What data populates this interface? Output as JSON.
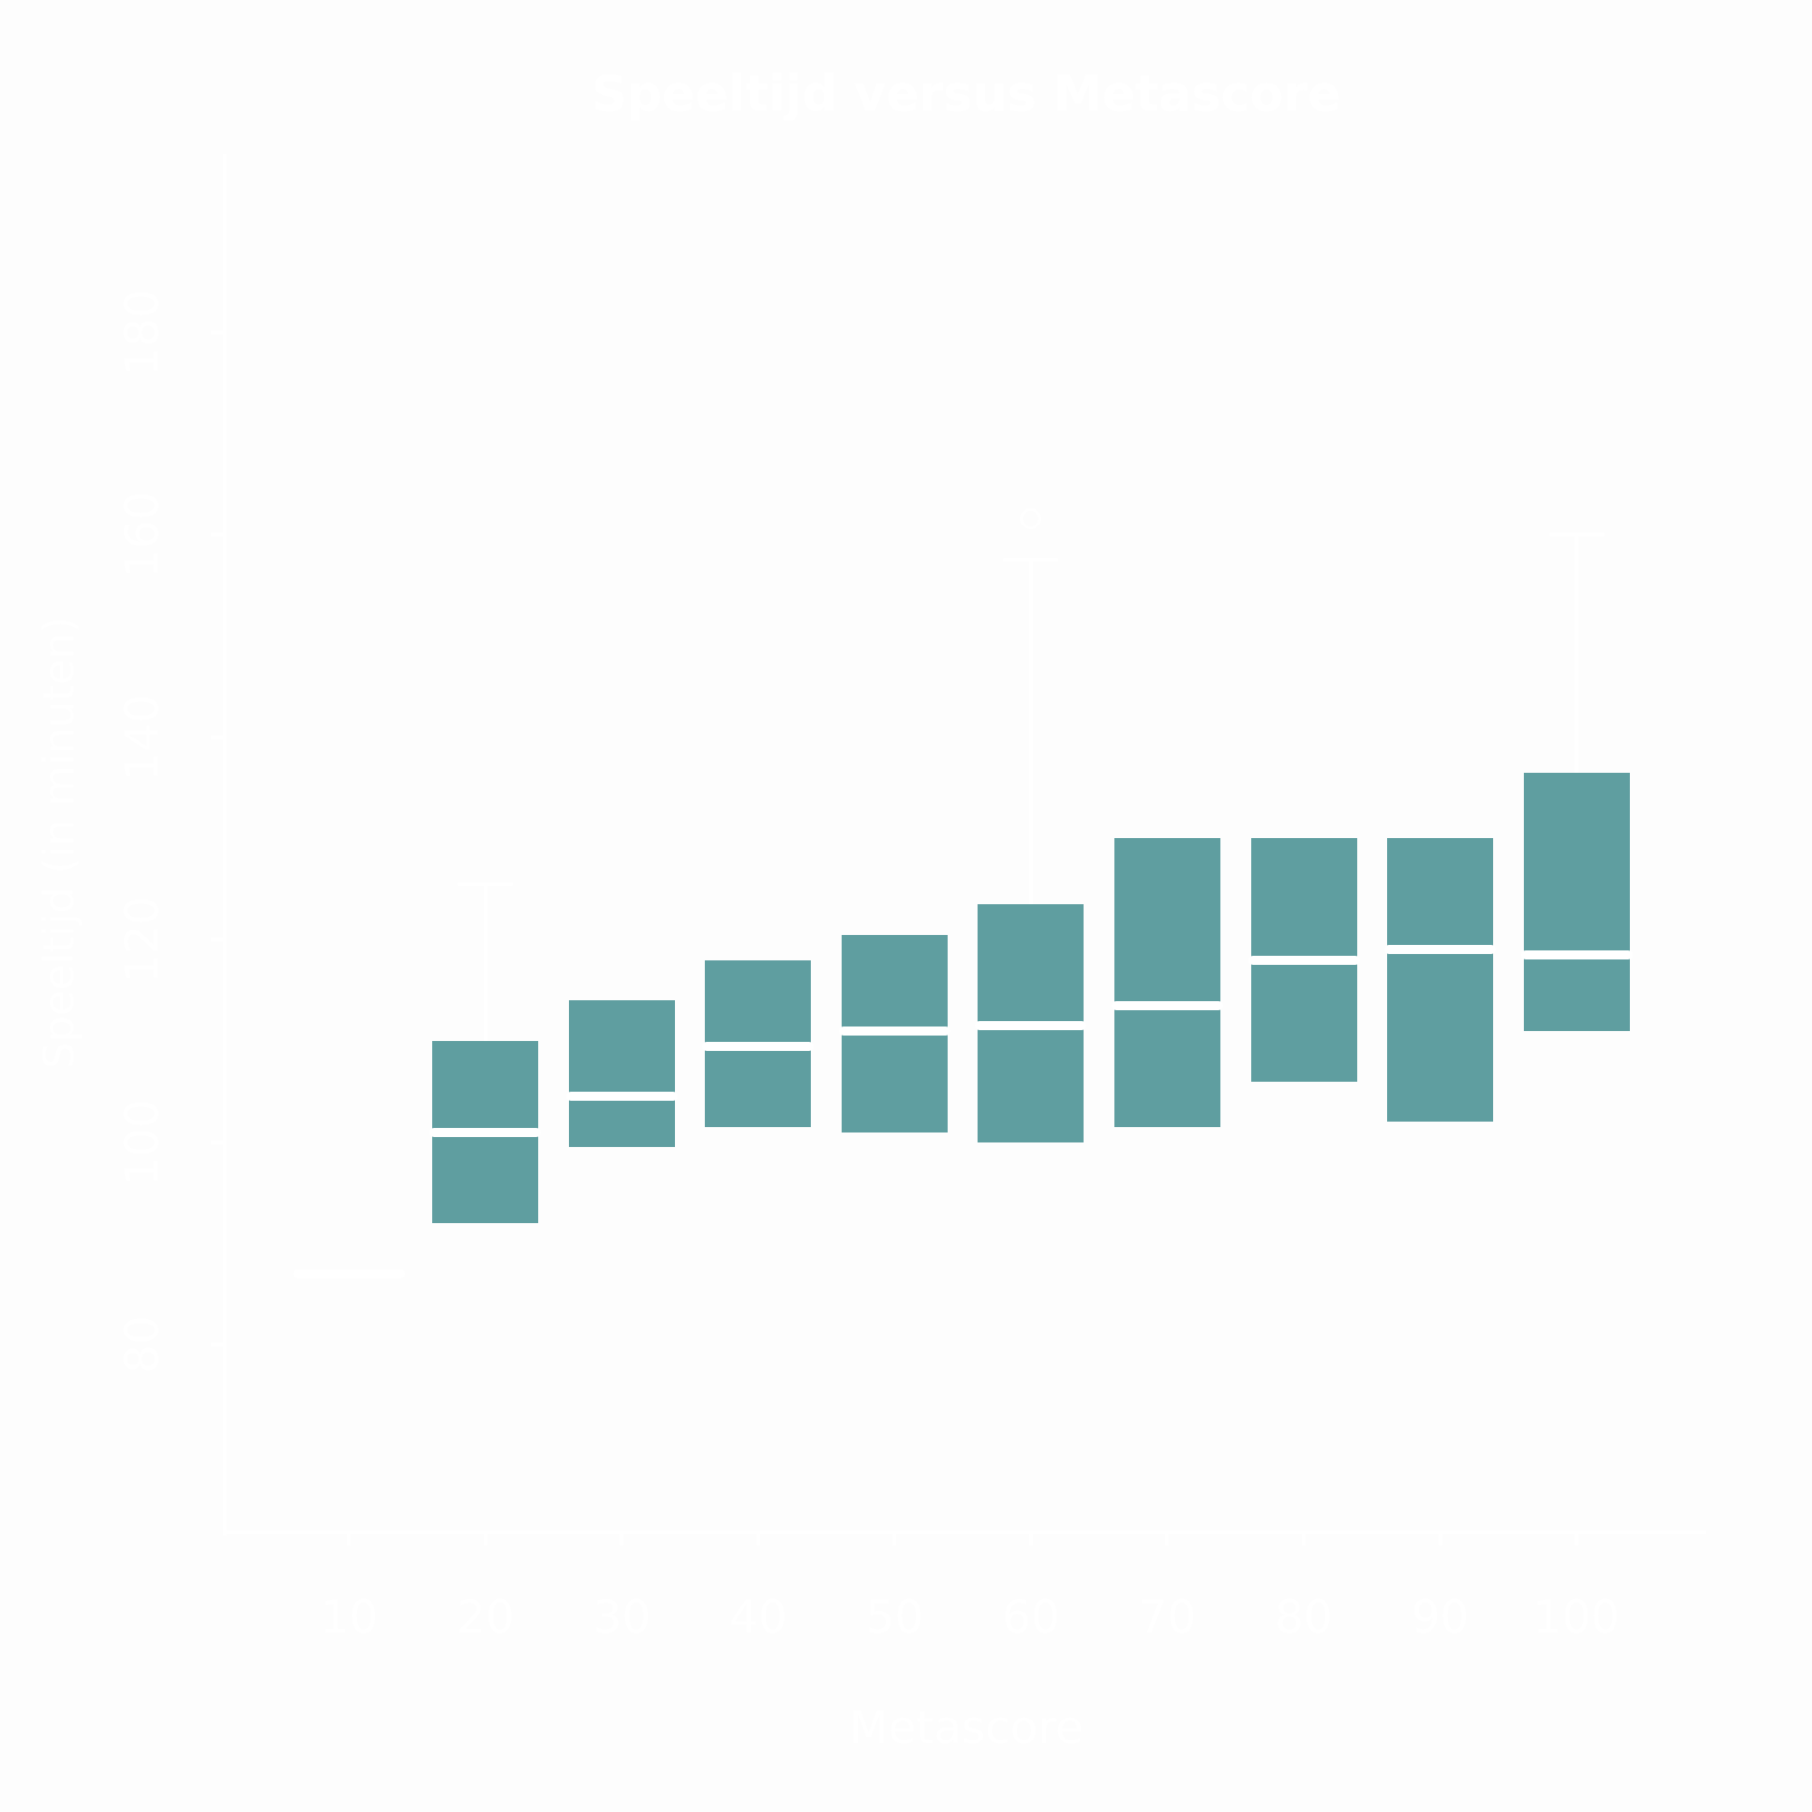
{
  "chart_data": {
    "type": "boxplot",
    "title": "Speeltijd versus Metascore",
    "xlabel": "Metascore",
    "ylabel": "Speeltijd (in minuten)",
    "x_ticks": [
      10,
      20,
      30,
      40,
      50,
      60,
      70,
      80,
      90,
      100
    ],
    "y_ticks": [
      80,
      100,
      120,
      140,
      160,
      180
    ],
    "x_range": [
      1.0,
      109.5
    ],
    "y_range": [
      61.5,
      197.6
    ],
    "grid": false,
    "legend": null,
    "colors": {
      "box_fill": "#5f9ea0",
      "lines_and_text": "#ffffff",
      "background": "#fdfdfd"
    },
    "groups": [
      {
        "metascore": 10,
        "q1": null,
        "median": 87,
        "q3": null,
        "whisker_high": null,
        "outliers": [],
        "box_collapsed": true
      },
      {
        "metascore": 20,
        "q1": 92,
        "median": 101,
        "q3": 110,
        "whisker_high": 125.5,
        "outliers": []
      },
      {
        "metascore": 30,
        "q1": 99.5,
        "median": 104.5,
        "q3": 114,
        "whisker_high": null,
        "outliers": []
      },
      {
        "metascore": 40,
        "q1": 101.5,
        "median": 109.5,
        "q3": 118,
        "whisker_high": null,
        "outliers": []
      },
      {
        "metascore": 50,
        "q1": 101,
        "median": 111,
        "q3": 120.5,
        "whisker_high": null,
        "outliers": []
      },
      {
        "metascore": 60,
        "q1": 100,
        "median": 111.5,
        "q3": 123.5,
        "whisker_high": 157.5,
        "outliers": [
          161.5
        ]
      },
      {
        "metascore": 70,
        "q1": 101.5,
        "median": 113.5,
        "q3": 130,
        "whisker_high": null,
        "outliers": []
      },
      {
        "metascore": 80,
        "q1": 106,
        "median": 118,
        "q3": 130,
        "whisker_high": null,
        "outliers": []
      },
      {
        "metascore": 90,
        "q1": 102,
        "median": 119,
        "q3": 130,
        "whisker_high": null,
        "outliers": []
      },
      {
        "metascore": 100,
        "q1": 111,
        "median": 118.5,
        "q3": 136.5,
        "whisker_high": 160,
        "outliers": []
      }
    ]
  }
}
